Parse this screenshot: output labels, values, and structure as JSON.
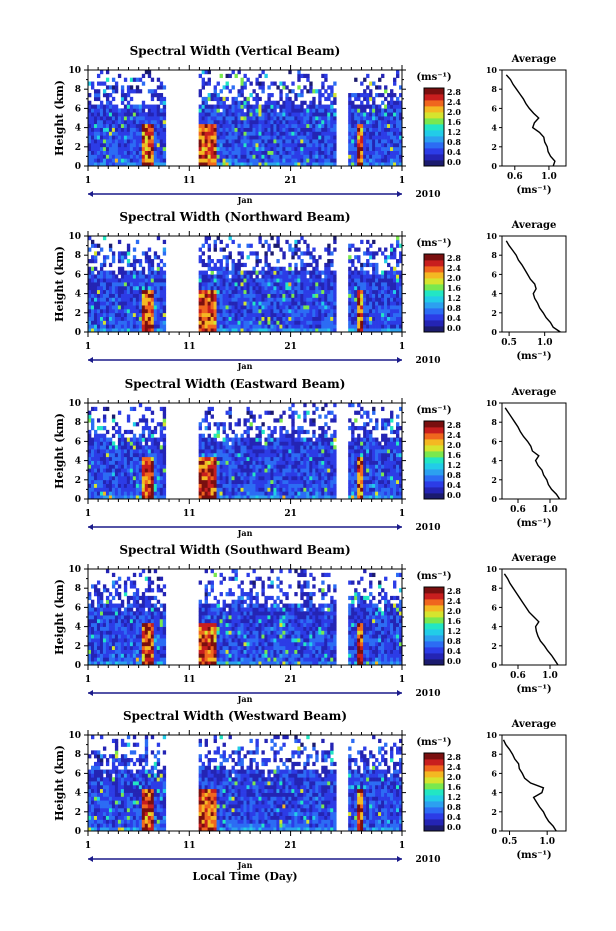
{
  "figure": {
    "x_title": "Local Time (Day)",
    "month_label": "Jan",
    "year_label": "2010",
    "colorbar_unit": "(ms⁻¹)",
    "profile_title": "Average",
    "profile_xlabel": "(ms⁻¹)",
    "main_ylabel": "Height (km)",
    "colors": {
      "colormap": [
        "#1b1b6e",
        "#2424b4",
        "#2c3ce6",
        "#2c6cf4",
        "#2ca0f0",
        "#22cce8",
        "#22e6c4",
        "#7ae84e",
        "#d6e42e",
        "#f4b822",
        "#f0661e",
        "#c81e1e",
        "#7a0f0f"
      ]
    }
  },
  "chart_data": [
    {
      "type": "heatmap",
      "title": "Spectral Width (Vertical Beam)",
      "xlim": [
        1,
        32
      ],
      "xticks": [
        "1",
        "11",
        "21",
        "1"
      ],
      "ylim": [
        0,
        10
      ],
      "yticks": [
        "0",
        "2",
        "4",
        "6",
        "8",
        "10"
      ],
      "data_gaps_days": [
        [
          8.7,
          11.9
        ],
        [
          25.5,
          26.6
        ]
      ],
      "colorbar": {
        "ticks": [
          "0.0",
          "0.4",
          "0.8",
          "1.2",
          "1.6",
          "2.0",
          "2.4",
          "2.8"
        ],
        "range": [
          0,
          2.8
        ]
      },
      "profile": {
        "xlim": [
          0.45,
          1.2
        ],
        "xticks": [
          "0.6",
          "1.0"
        ],
        "yticks": [
          "0",
          "2",
          "4",
          "6",
          "8",
          "10"
        ],
        "height_km": [
          0,
          0.5,
          1,
          1.5,
          2,
          2.5,
          3,
          3.5,
          4,
          4.5,
          5,
          5.5,
          6,
          6.5,
          7,
          7.5,
          8,
          8.5,
          9,
          9.5
        ],
        "average_ms": [
          1.05,
          1.07,
          1.02,
          0.99,
          0.98,
          0.95,
          0.94,
          0.89,
          0.81,
          0.83,
          0.88,
          0.82,
          0.77,
          0.73,
          0.7,
          0.66,
          0.62,
          0.58,
          0.55,
          0.5
        ]
      }
    },
    {
      "type": "heatmap",
      "title": "Spectral Width (Northward Beam)",
      "xlim": [
        1,
        32
      ],
      "xticks": [
        "1",
        "11",
        "21",
        "1"
      ],
      "ylim": [
        0,
        10
      ],
      "yticks": [
        "0",
        "2",
        "4",
        "6",
        "8",
        "10"
      ],
      "data_gaps_days": [
        [
          8.7,
          11.9
        ],
        [
          25.5,
          26.6
        ]
      ],
      "colorbar": {
        "ticks": [
          "0.0",
          "0.4",
          "0.8",
          "1.2",
          "1.6",
          "2.0",
          "2.4",
          "2.8"
        ],
        "range": [
          0,
          2.8
        ]
      },
      "profile": {
        "xlim": [
          0.4,
          1.3
        ],
        "xticks": [
          "0.5",
          "1.0"
        ],
        "yticks": [
          "0",
          "2",
          "4",
          "6",
          "8",
          "10"
        ],
        "height_km": [
          0,
          0.5,
          1,
          1.5,
          2,
          2.5,
          3,
          3.5,
          4,
          4.5,
          5,
          5.5,
          6,
          6.5,
          7,
          7.5,
          8,
          8.5,
          9,
          9.5
        ],
        "average_ms": [
          1.22,
          1.12,
          1.08,
          1.02,
          0.98,
          0.93,
          0.9,
          0.86,
          0.84,
          0.88,
          0.86,
          0.8,
          0.76,
          0.72,
          0.68,
          0.63,
          0.6,
          0.55,
          0.5,
          0.46
        ]
      }
    },
    {
      "type": "heatmap",
      "title": "Spectral Width (Eastward Beam)",
      "xlim": [
        1,
        32
      ],
      "xticks": [
        "1",
        "11",
        "21",
        "1"
      ],
      "ylim": [
        0,
        10
      ],
      "yticks": [
        "0",
        "2",
        "4",
        "6",
        "8",
        "10"
      ],
      "data_gaps_days": [
        [
          8.7,
          11.9
        ],
        [
          25.5,
          26.6
        ]
      ],
      "colorbar": {
        "ticks": [
          "0.0",
          "0.4",
          "0.8",
          "1.2",
          "1.6",
          "2.0",
          "2.4",
          "2.8"
        ],
        "range": [
          0,
          2.8
        ]
      },
      "profile": {
        "xlim": [
          0.4,
          1.2
        ],
        "xticks": [
          "0.6",
          "1.0"
        ],
        "yticks": [
          "0",
          "2",
          "4",
          "6",
          "8",
          "10"
        ],
        "height_km": [
          0,
          0.5,
          1,
          1.5,
          2,
          2.5,
          3,
          3.5,
          4,
          4.5,
          5,
          5.5,
          6,
          6.5,
          7,
          7.5,
          8,
          8.5,
          9,
          9.5
        ],
        "average_ms": [
          1.12,
          1.08,
          1.02,
          0.98,
          0.96,
          0.92,
          0.9,
          0.85,
          0.82,
          0.86,
          0.78,
          0.76,
          0.72,
          0.67,
          0.63,
          0.6,
          0.56,
          0.52,
          0.48,
          0.44
        ]
      }
    },
    {
      "type": "heatmap",
      "title": "Spectral Width (Southward Beam)",
      "xlim": [
        1,
        32
      ],
      "xticks": [
        "1",
        "11",
        "21",
        "1"
      ],
      "ylim": [
        0,
        10
      ],
      "yticks": [
        "0",
        "2",
        "4",
        "6",
        "8",
        "10"
      ],
      "data_gaps_days": [
        [
          8.7,
          11.9
        ],
        [
          25.5,
          26.6
        ]
      ],
      "colorbar": {
        "ticks": [
          "0.0",
          "0.4",
          "0.8",
          "1.2",
          "1.6",
          "2.0",
          "2.4",
          "2.8"
        ],
        "range": [
          0,
          2.8
        ]
      },
      "profile": {
        "xlim": [
          0.4,
          1.2
        ],
        "xticks": [
          "0.6",
          "1.0"
        ],
        "yticks": [
          "0",
          "2",
          "4",
          "6",
          "8",
          "10"
        ],
        "height_km": [
          0,
          0.5,
          1,
          1.5,
          2,
          2.5,
          3,
          3.5,
          4,
          4.5,
          5,
          5.5,
          6,
          6.5,
          7,
          7.5,
          8,
          8.5,
          9,
          9.5
        ],
        "average_ms": [
          1.1,
          1.06,
          1.02,
          0.97,
          0.93,
          0.88,
          0.85,
          0.83,
          0.82,
          0.86,
          0.8,
          0.74,
          0.7,
          0.66,
          0.62,
          0.58,
          0.54,
          0.5,
          0.47,
          0.43
        ]
      }
    },
    {
      "type": "heatmap",
      "title": "Spectral Width (Westward Beam)",
      "xlim": [
        1,
        32
      ],
      "xticks": [
        "1",
        "11",
        "21",
        "1"
      ],
      "ylim": [
        0,
        10
      ],
      "yticks": [
        "0",
        "2",
        "4",
        "6",
        "8",
        "10"
      ],
      "data_gaps_days": [
        [
          8.7,
          11.9
        ],
        [
          25.5,
          26.6
        ]
      ],
      "colorbar": {
        "ticks": [
          "0.0",
          "0.4",
          "0.8",
          "1.2",
          "1.6",
          "2.0",
          "2.4",
          "2.8"
        ],
        "range": [
          0,
          2.8
        ]
      },
      "profile": {
        "xlim": [
          0.4,
          1.25
        ],
        "xticks": [
          "0.5",
          "1.0"
        ],
        "yticks": [
          "0",
          "2",
          "4",
          "6",
          "8",
          "10"
        ],
        "height_km": [
          0,
          0.5,
          1,
          1.5,
          2,
          2.5,
          3,
          3.5,
          4,
          4.5,
          5,
          5.5,
          6,
          6.5,
          7,
          7.5,
          8,
          8.5,
          9,
          9.5
        ],
        "average_ms": [
          1.12,
          1.08,
          1.02,
          0.98,
          0.95,
          0.9,
          0.86,
          0.82,
          0.93,
          0.95,
          0.78,
          0.7,
          0.67,
          0.63,
          0.62,
          0.57,
          0.54,
          0.5,
          0.45,
          0.42
        ]
      }
    }
  ]
}
